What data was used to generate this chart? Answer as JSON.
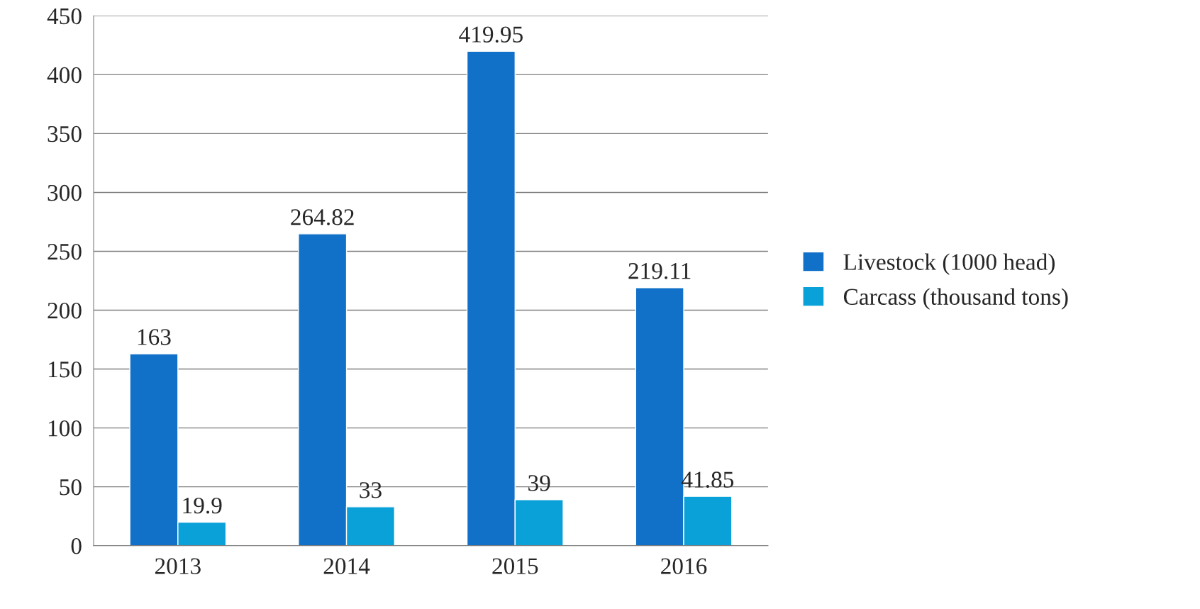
{
  "chart_data": {
    "type": "bar",
    "categories": [
      "2013",
      "2014",
      "2015",
      "2016"
    ],
    "series": [
      {
        "name": "Livestock (1000 head)",
        "color": "#1170c8",
        "values": [
          163,
          264.82,
          419.95,
          219.11
        ]
      },
      {
        "name": "Carcass (thousand tons)",
        "color": "#0aa0d8",
        "values": [
          19.9,
          33,
          39,
          41.85
        ]
      }
    ],
    "ylim": [
      0,
      450
    ],
    "yticks": [
      0,
      50,
      100,
      150,
      200,
      250,
      300,
      350,
      400,
      450
    ],
    "grid": "y",
    "legend": "right",
    "data_labels": true
  }
}
